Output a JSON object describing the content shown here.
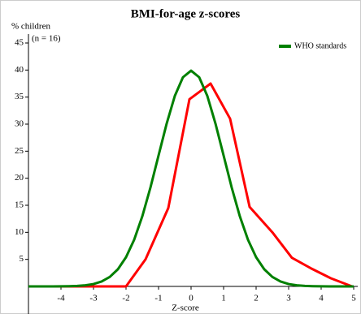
{
  "chart_data": {
    "type": "line",
    "title": "BMI-for-age z-scores",
    "y_label": "% children",
    "annotation": "(n = 16)",
    "x_label": "Z-score",
    "xlim": [
      -5,
      5
    ],
    "xticks": [
      -4,
      -3,
      -2,
      -1,
      0,
      1,
      2,
      3,
      4,
      5
    ],
    "ylim": [
      0,
      45
    ],
    "yticks": [
      5,
      10,
      15,
      20,
      25,
      30,
      35,
      40,
      45
    ],
    "legend": "top-right",
    "series": [
      {
        "color": "#ff0000",
        "x": [
          -5,
          -2,
          -1.4,
          -0.7,
          -0.05,
          0.6,
          1.2,
          1.8,
          2.5,
          3.1,
          3.7,
          4.3,
          4.95
        ],
        "values": [
          0,
          0,
          5,
          14.5,
          34.6,
          37.5,
          31,
          14.7,
          10,
          5.3,
          3.3,
          1.5,
          0
        ]
      },
      {
        "name": "WHO standards",
        "color": "#008000",
        "x": [
          -5,
          -4.75,
          -4.5,
          -4.25,
          -4,
          -3.75,
          -3.5,
          -3.25,
          -3,
          -2.75,
          -2.5,
          -2.25,
          -2,
          -1.75,
          -1.5,
          -1.25,
          -1,
          -0.75,
          -0.5,
          -0.25,
          0,
          0.25,
          0.5,
          0.75,
          1,
          1.25,
          1.5,
          1.75,
          2,
          2.25,
          2.5,
          2.75,
          3,
          3.25,
          3.5,
          3.75,
          4,
          4.25,
          4.5,
          4.75,
          5
        ],
        "values": [
          0,
          0,
          0,
          0,
          0.01,
          0.04,
          0.09,
          0.2,
          0.44,
          0.91,
          1.75,
          3.17,
          5.4,
          8.63,
          12.95,
          18.26,
          24.2,
          30.11,
          35.21,
          38.66,
          39.89,
          38.66,
          35.21,
          30.11,
          24.2,
          18.26,
          12.95,
          8.63,
          5.4,
          3.17,
          1.75,
          0.91,
          0.44,
          0.2,
          0.09,
          0.04,
          0.01,
          0,
          0,
          0,
          0
        ]
      }
    ]
  }
}
